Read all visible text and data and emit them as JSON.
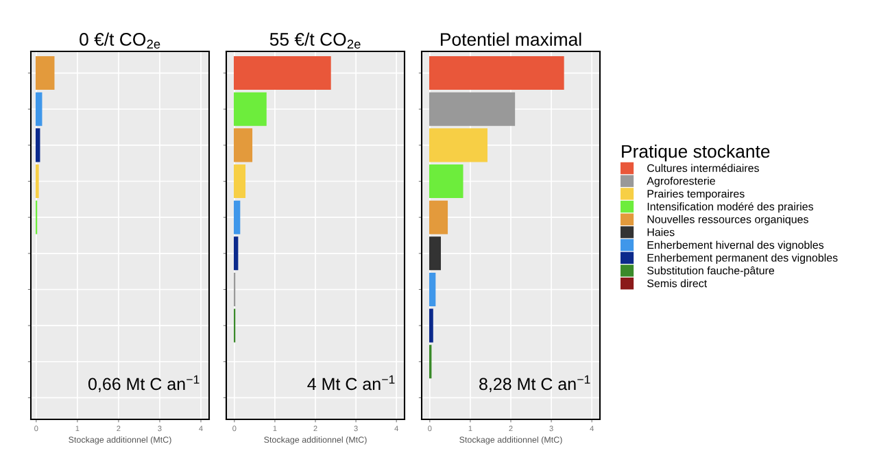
{
  "chart_data": [
    {
      "type": "bar",
      "orientation": "horizontal",
      "title": "0 €/t CO$_{2e}$",
      "xlabel": "Stockage additionnel (MtC)",
      "categories": [
        null,
        null,
        null,
        null,
        null,
        null,
        null,
        null,
        null,
        null
      ],
      "values": [
        0.43,
        0.13,
        0.08,
        0.05,
        0.01,
        null,
        null,
        null,
        null,
        null
      ],
      "colors": [
        "#e39a3c",
        "#3f97ea",
        "#0c2a8c",
        "#f7cf45",
        "#6ded3c",
        "#999999",
        "#999999",
        "#999999",
        "#999999",
        "#999999"
      ],
      "xlim": [
        -0.13,
        4.2
      ],
      "xticks": [
        0,
        1,
        2,
        3,
        4
      ],
      "grid": true,
      "annotations": [
        "0,66 Mt C an$^{−1}$"
      ]
    },
    {
      "type": "bar",
      "orientation": "horizontal",
      "title": "55 €/t CO$_{2e}$",
      "xlabel": "Stockage additionnel (MtC)",
      "categories": [
        null,
        null,
        null,
        null,
        null,
        null,
        null,
        null,
        null,
        null
      ],
      "values": [
        2.37,
        0.78,
        0.43,
        0.26,
        0.13,
        0.08,
        0.01,
        0.01,
        null,
        null
      ],
      "colors": [
        "#e9573a",
        "#6ded3c",
        "#e39a3c",
        "#f7cf45",
        "#3f97ea",
        "#0c2a8c",
        "#999999",
        "#3a8a2a",
        "#999999",
        "#999999"
      ],
      "xlim": [
        -0.2,
        4.2
      ],
      "xticks": [
        0,
        1,
        2,
        3,
        4
      ],
      "grid": true,
      "annotations": [
        "4 Mt C an$^{−1}$"
      ]
    },
    {
      "type": "bar",
      "orientation": "horizontal",
      "title": "Potentiel maximal",
      "xlabel": "Stockage additionnel (MtC)",
      "categories": [
        null,
        null,
        null,
        null,
        null,
        null,
        null,
        null,
        null,
        null
      ],
      "series": [
        {
          "name": "Cultures intermédiaires",
          "color": "#e9573a",
          "values": [
            3.3,
            null,
            null,
            null,
            null,
            null,
            null,
            null,
            null,
            null
          ]
        },
        {
          "name": "Agroforesterie",
          "color": "#999999",
          "values": [
            null,
            2.09,
            null,
            null,
            null,
            null,
            null,
            null,
            null,
            null
          ]
        },
        {
          "name": "Prairies temporaires",
          "color": "#f7cf45",
          "values": [
            null,
            null,
            1.41,
            null,
            null,
            null,
            null,
            null,
            null,
            null
          ]
        },
        {
          "name": "Intensification modéré des prairies",
          "color": "#6ded3c",
          "values": [
            null,
            null,
            null,
            0.81,
            null,
            null,
            null,
            null,
            null,
            null
          ]
        },
        {
          "name": "Nouvelles ressources organiques",
          "color": "#e39a3c",
          "values": [
            null,
            null,
            null,
            null,
            0.43,
            null,
            null,
            null,
            null,
            null
          ]
        },
        {
          "name": "Haies",
          "color": "#333333",
          "values": [
            null,
            null,
            null,
            null,
            null,
            0.26,
            null,
            null,
            null,
            null
          ]
        },
        {
          "name": "Enherbement hivernal des vignobles",
          "color": "#3f97ea",
          "values": [
            null,
            null,
            null,
            null,
            null,
            null,
            0.13,
            null,
            null,
            null
          ]
        },
        {
          "name": "Enherbement permanent des vignobles",
          "color": "#0c2a8c",
          "values": [
            null,
            null,
            null,
            null,
            null,
            null,
            null,
            0.07,
            null,
            null
          ]
        },
        {
          "name": "Substitution fauche-pâture",
          "color": "#3a8a2a",
          "values": [
            null,
            null,
            null,
            null,
            null,
            null,
            null,
            null,
            0.03,
            null
          ]
        },
        {
          "name": "Semis direct",
          "color": "#8b1a1a",
          "values": [
            null,
            null,
            null,
            null,
            null,
            null,
            null,
            null,
            null,
            null
          ]
        }
      ],
      "xlim": [
        -0.2,
        4.2
      ],
      "xticks": [
        0,
        1,
        2,
        3,
        4
      ],
      "grid": true,
      "legend": "right",
      "legend_title": "Pratique stockante",
      "annotations": [
        "8,28 Mt C an$^{−1}$"
      ]
    }
  ]
}
